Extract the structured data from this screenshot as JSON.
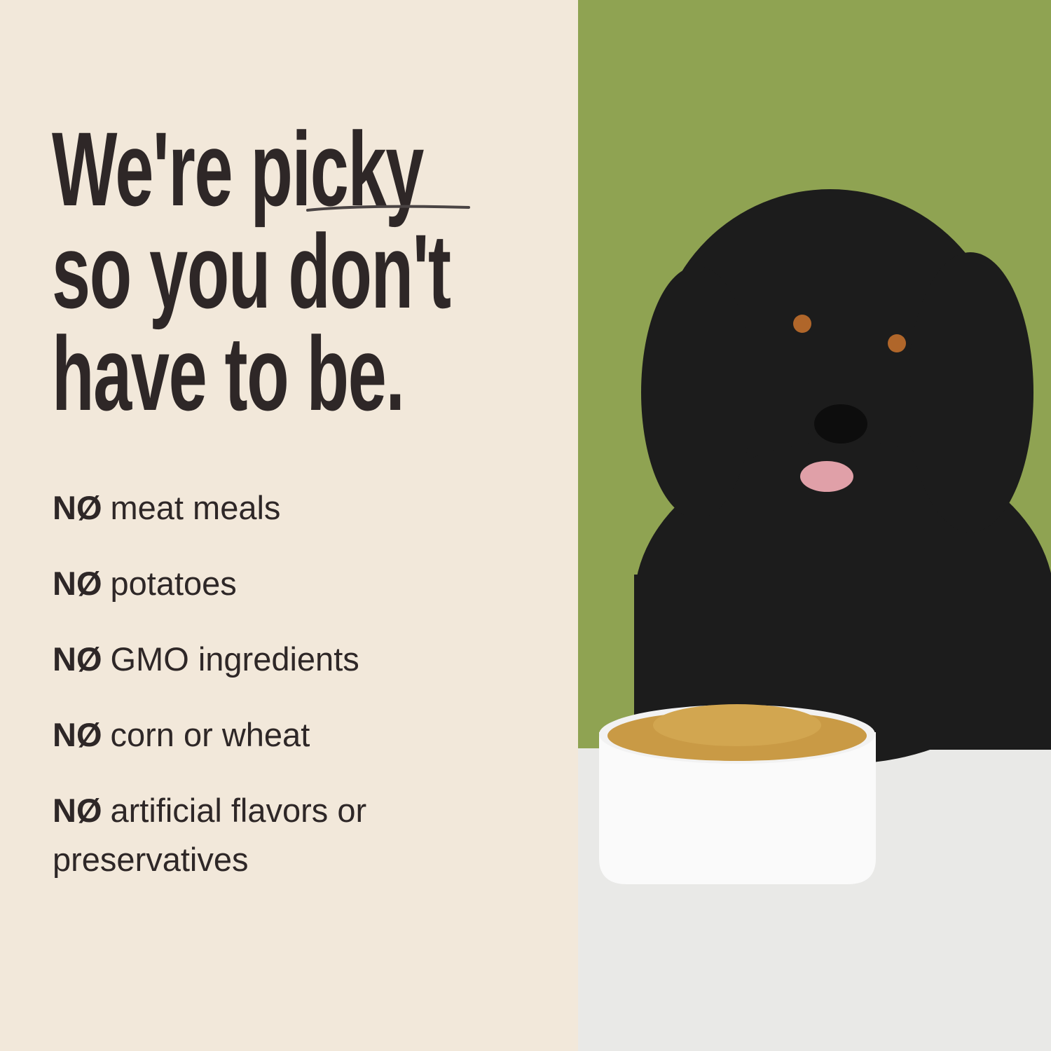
{
  "headline": {
    "line1_pre": "We're ",
    "line1_em": "picky",
    "line2": "so you don't",
    "line3": "have to be."
  },
  "list": [
    {
      "prefix": "NØ",
      "text": "meat meals"
    },
    {
      "prefix": "NØ",
      "text": "potatoes"
    },
    {
      "prefix": "NØ",
      "text": "GMO ingredients"
    },
    {
      "prefix": "NØ",
      "text": "corn or wheat"
    },
    {
      "prefix": "NØ",
      "text": "artificial flavors or preservatives"
    }
  ],
  "colors": {
    "background": "#f2e8da",
    "text": "#2e2727",
    "wall": "#8fa352",
    "table": "#e9e9e7"
  }
}
